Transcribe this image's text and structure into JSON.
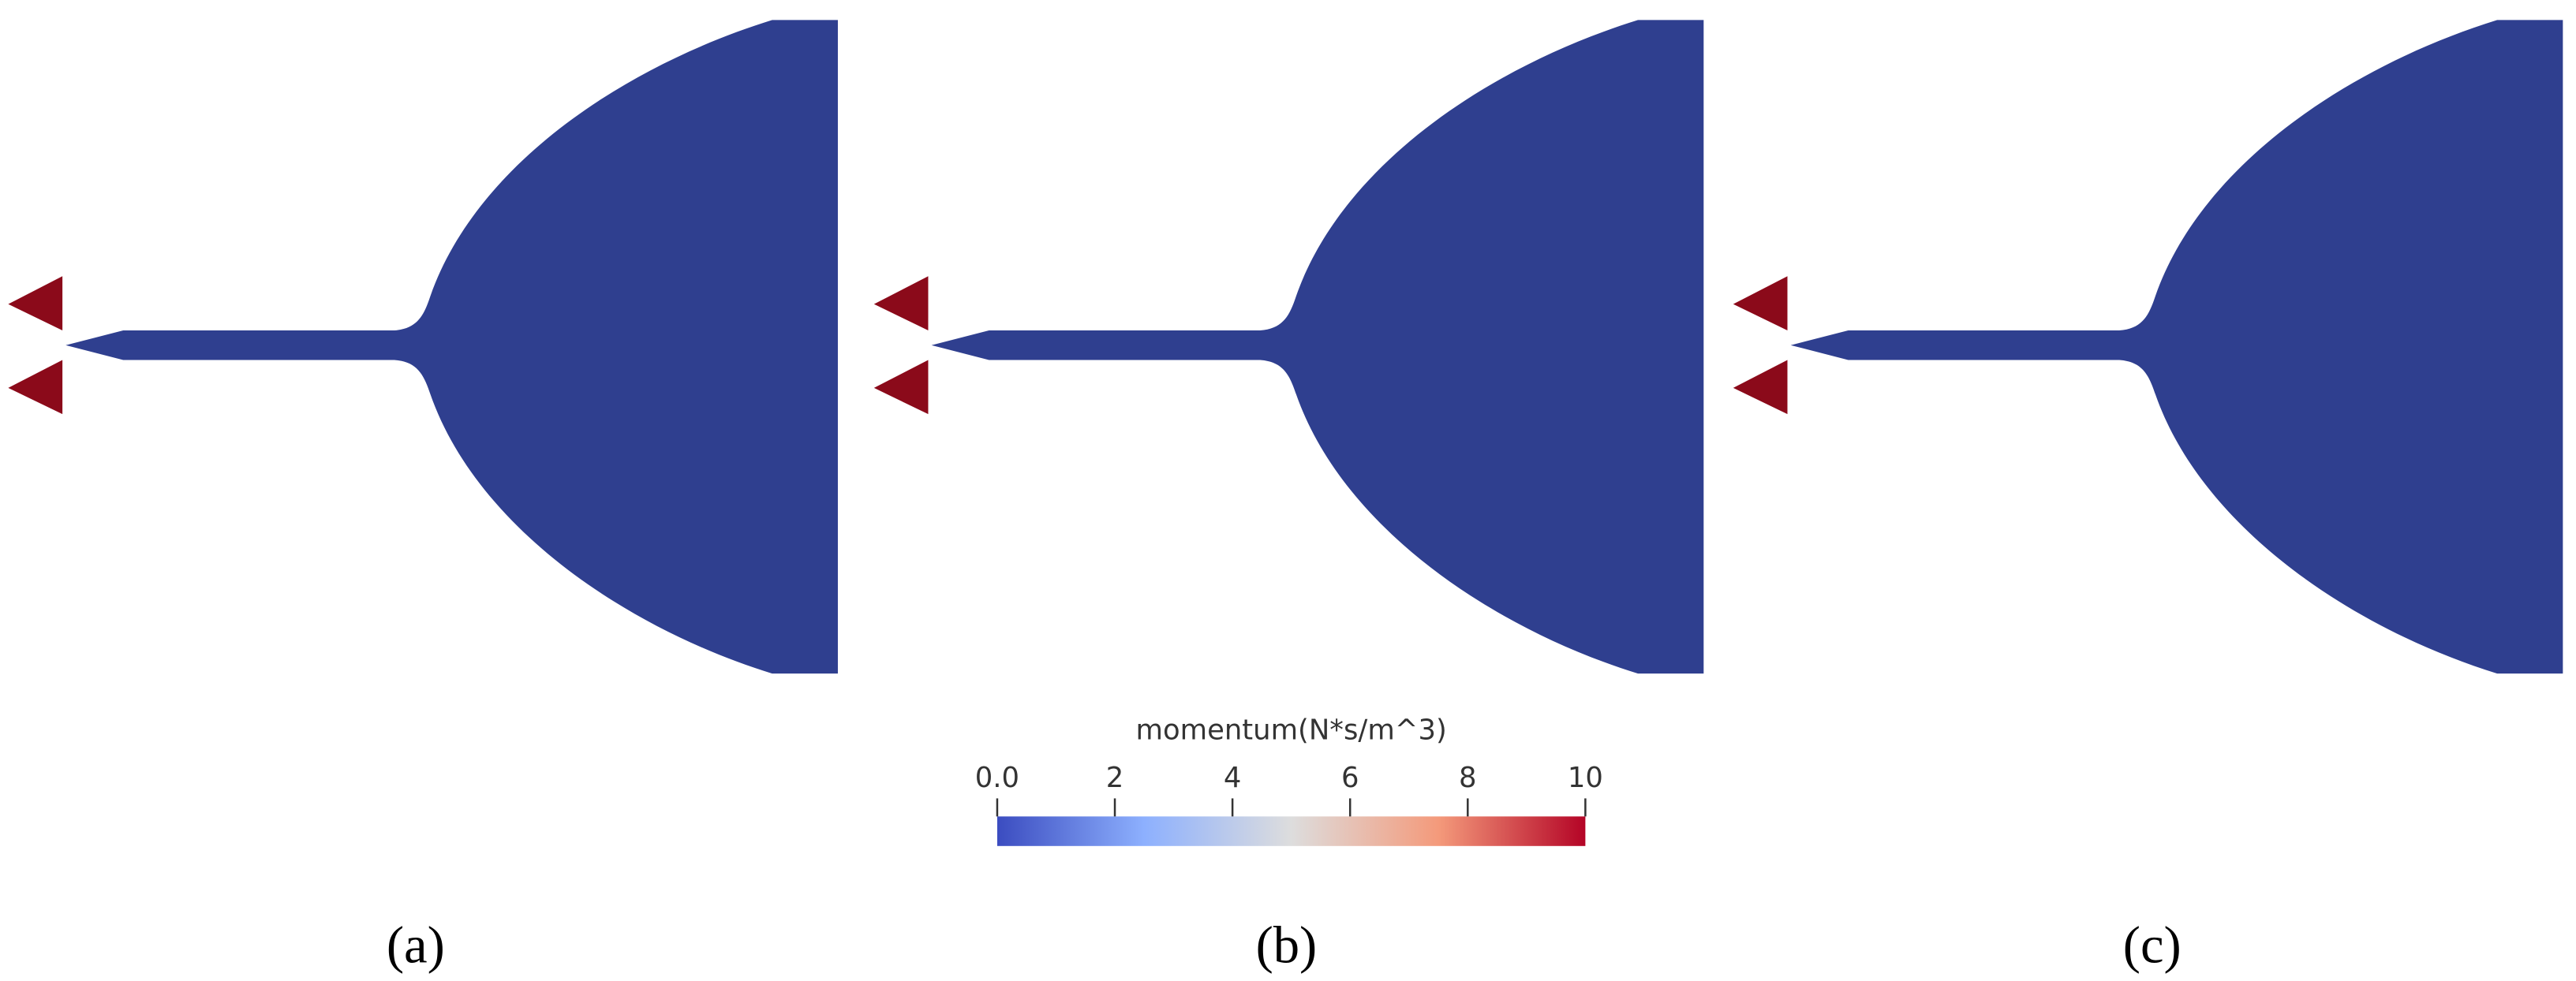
{
  "colorbar": {
    "title": "momentum(N*s/m^3)",
    "range": [
      0,
      10
    ],
    "ticks": [
      {
        "value": 0,
        "label": "0.0"
      },
      2,
      4,
      6,
      8,
      10
    ],
    "colors": [
      "#3b4cc0",
      "#8db0fe",
      "#dddddd",
      "#f49a7b",
      "#b40426"
    ]
  },
  "panels": [
    {
      "label": "(a)"
    },
    {
      "label": "(b)"
    },
    {
      "label": "(c)"
    }
  ],
  "domain_color": "#2f3f8f",
  "inlet_color": "#8b0a1a"
}
